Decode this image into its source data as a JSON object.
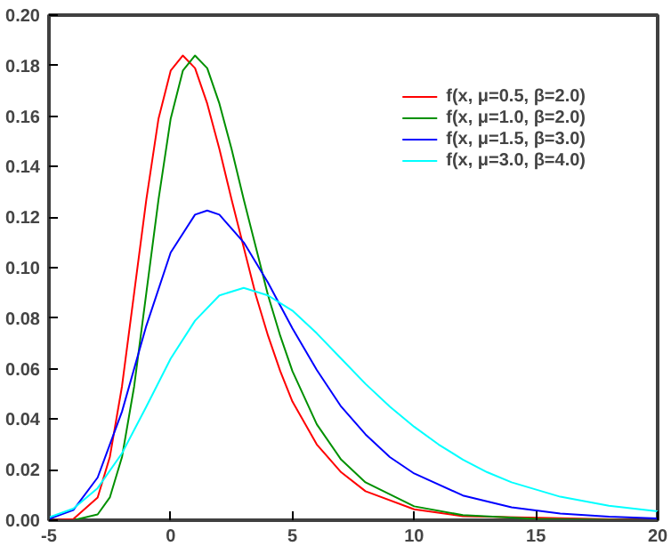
{
  "chart_data": {
    "type": "line",
    "xlim": [
      -5,
      20
    ],
    "ylim": [
      0,
      0.2
    ],
    "xticks": [
      -5,
      0,
      5,
      10,
      15,
      20
    ],
    "yticks": [
      {
        "value": 0,
        "label": "0.00"
      },
      {
        "value": 0.02,
        "label": "0.02"
      },
      {
        "value": 0.04,
        "label": "0.04"
      },
      {
        "value": 0.06,
        "label": "0.06"
      },
      {
        "value": 0.08,
        "label": "0.08"
      },
      {
        "value": 0.1,
        "label": "0.10"
      },
      {
        "value": 0.12,
        "label": "0.12"
      },
      {
        "value": 0.14,
        "label": "0.14"
      },
      {
        "value": 0.16,
        "label": "0.16"
      },
      {
        "value": 0.18,
        "label": "0.18"
      },
      {
        "value": 0.2,
        "label": "0.20"
      }
    ],
    "grid": false,
    "legend": "top right",
    "marker": "none",
    "line_style": "solid",
    "series": [
      {
        "name": "f(x, μ=0.5, β=2.0)",
        "color": "#ff0000",
        "x": [
          -5,
          -4,
          -3,
          -2.5,
          -2,
          -1.5,
          -1,
          -0.5,
          0,
          0.5,
          1,
          1.5,
          2,
          2.5,
          3,
          3.5,
          4,
          4.5,
          5,
          6,
          7,
          8,
          10,
          12,
          20
        ],
        "values": [
          0,
          0.0004,
          0.009,
          0.025,
          0.053,
          0.09,
          0.127,
          0.159,
          0.178,
          0.184,
          0.179,
          0.165,
          0.147,
          0.127,
          0.108,
          0.089,
          0.073,
          0.059,
          0.047,
          0.03,
          0.019,
          0.0115,
          0.0043,
          0.0016,
          0
        ]
      },
      {
        "name": "f(x, μ=1.0, β=2.0)",
        "color": "#009000",
        "x": [
          -5,
          -4,
          -3,
          -2.5,
          -2,
          -1.5,
          -1,
          -0.5,
          0,
          0.5,
          1,
          1.5,
          2,
          2.5,
          3,
          3.5,
          4,
          4.5,
          5,
          6,
          7,
          8,
          10,
          12,
          15,
          20
        ],
        "values": [
          0,
          0,
          0.0023,
          0.009,
          0.025,
          0.053,
          0.09,
          0.127,
          0.159,
          0.178,
          0.184,
          0.179,
          0.165,
          0.147,
          0.127,
          0.108,
          0.089,
          0.073,
          0.059,
          0.038,
          0.024,
          0.015,
          0.0055,
          0.002,
          0.0005,
          0
        ]
      },
      {
        "name": "f(x, μ=1.5, β=3.0)",
        "color": "#0000ff",
        "x": [
          -5,
          -4,
          -3,
          -2,
          -1,
          0,
          1,
          1.5,
          2,
          3,
          4,
          5,
          6,
          7,
          8,
          9,
          10,
          12,
          14,
          16,
          18,
          20
        ],
        "values": [
          0.0005,
          0.004,
          0.0169,
          0.043,
          0.077,
          0.106,
          0.121,
          0.1226,
          0.121,
          0.11,
          0.094,
          0.076,
          0.0595,
          0.045,
          0.034,
          0.025,
          0.0185,
          0.0098,
          0.0051,
          0.0026,
          0.0014,
          0.0007
        ]
      },
      {
        "name": "f(x, μ=3.0, β=4.0)",
        "color": "#00ffff",
        "x": [
          -5,
          -4,
          -3,
          -2,
          -1,
          0,
          1,
          2,
          3,
          4,
          5,
          6,
          7,
          8,
          9,
          10,
          11,
          12,
          13,
          14,
          16,
          18,
          20
        ],
        "values": [
          0.0011,
          0.0046,
          0.0127,
          0.0265,
          0.045,
          0.064,
          0.079,
          0.089,
          0.092,
          0.089,
          0.083,
          0.074,
          0.064,
          0.054,
          0.045,
          0.037,
          0.03,
          0.024,
          0.019,
          0.015,
          0.0093,
          0.0057,
          0.0035
        ]
      }
    ]
  }
}
